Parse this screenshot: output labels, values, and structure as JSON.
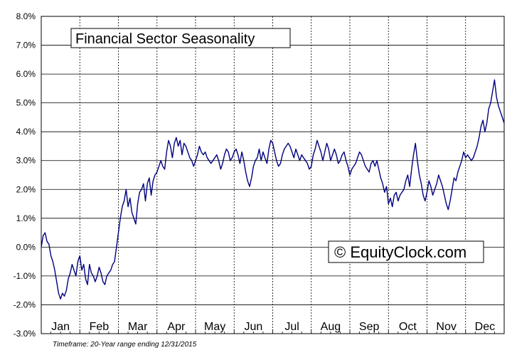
{
  "chart_data": {
    "type": "line",
    "title": "Financial Sector Seasonality",
    "watermark": "© EquityClock.com",
    "footnote": "Timeframe: 20-Year range ending 12/31/2015",
    "y_unit": "%",
    "ylim": [
      -3.0,
      8.0
    ],
    "y_ticks": [
      "8.0%",
      "7.0%",
      "6.0%",
      "5.0%",
      "4.0%",
      "3.0%",
      "2.0%",
      "1.0%",
      "0.0%",
      "-1.0%",
      "-2.0%",
      "-3.0%"
    ],
    "y_tick_values": [
      8,
      7,
      6,
      5,
      4,
      3,
      2,
      1,
      0,
      -1,
      -2,
      -3
    ],
    "months": [
      "Jan",
      "Feb",
      "Mar",
      "Apr",
      "May",
      "Jun",
      "Jul",
      "Aug",
      "Sep",
      "Oct",
      "Nov",
      "Dec"
    ],
    "grid": true,
    "line_color": "#000080",
    "series": [
      {
        "x": [
          0,
          0.05,
          0.1,
          0.15,
          0.2,
          0.25,
          0.3,
          0.35,
          0.4,
          0.45,
          0.5,
          0.55,
          0.6,
          0.65,
          0.7,
          0.75,
          0.8,
          0.85,
          0.9,
          0.95,
          1.0,
          1.05,
          1.1,
          1.15,
          1.2,
          1.25,
          1.3,
          1.35,
          1.4,
          1.45,
          1.5,
          1.55,
          1.6,
          1.65,
          1.7,
          1.75,
          1.8,
          1.85,
          1.9,
          1.95,
          2.0,
          2.05,
          2.1,
          2.15,
          2.2,
          2.25,
          2.3,
          2.35,
          2.4,
          2.45,
          2.5,
          2.55,
          2.6,
          2.65,
          2.7,
          2.75,
          2.8,
          2.85,
          2.9,
          2.95,
          3.0,
          3.05,
          3.1,
          3.15,
          3.2,
          3.25,
          3.3,
          3.35,
          3.4,
          3.45,
          3.5,
          3.55,
          3.6,
          3.65,
          3.7,
          3.75,
          3.8,
          3.85,
          3.9,
          3.95,
          4.0,
          4.05,
          4.1,
          4.15,
          4.2,
          4.25,
          4.3,
          4.35,
          4.4,
          4.45,
          4.5,
          4.55,
          4.6,
          4.65,
          4.7,
          4.75,
          4.8,
          4.85,
          4.9,
          4.95,
          5.0,
          5.05,
          5.1,
          5.15,
          5.2,
          5.25,
          5.3,
          5.35,
          5.4,
          5.45,
          5.5,
          5.55,
          5.6,
          5.65,
          5.7,
          5.75,
          5.8,
          5.85,
          5.9,
          5.95,
          6.0,
          6.05,
          6.1,
          6.15,
          6.2,
          6.25,
          6.3,
          6.35,
          6.4,
          6.45,
          6.5,
          6.55,
          6.6,
          6.65,
          6.7,
          6.75,
          6.8,
          6.85,
          6.9,
          6.95,
          7.0,
          7.05,
          7.1,
          7.15,
          7.2,
          7.25,
          7.3,
          7.35,
          7.4,
          7.45,
          7.5,
          7.55,
          7.6,
          7.65,
          7.7,
          7.75,
          7.8,
          7.85,
          7.9,
          7.95,
          8.0,
          8.05,
          8.1,
          8.15,
          8.2,
          8.25,
          8.3,
          8.35,
          8.4,
          8.45,
          8.5,
          8.55,
          8.6,
          8.65,
          8.7,
          8.75,
          8.8,
          8.85,
          8.9,
          8.95,
          9.0,
          9.05,
          9.1,
          9.15,
          9.2,
          9.25,
          9.3,
          9.35,
          9.4,
          9.45,
          9.5,
          9.55,
          9.6,
          9.65,
          9.7,
          9.75,
          9.8,
          9.85,
          9.9,
          9.95,
          10.0,
          10.05,
          10.1,
          10.15,
          10.2,
          10.25,
          10.3,
          10.35,
          10.4,
          10.45,
          10.5,
          10.55,
          10.6,
          10.65,
          10.7,
          10.75,
          10.8,
          10.85,
          10.9,
          10.95,
          11.0,
          11.05,
          11.1,
          11.15,
          11.2,
          11.25,
          11.3,
          11.35,
          11.4,
          11.45,
          11.5,
          11.55,
          11.6,
          11.65,
          11.7,
          11.75,
          11.8,
          11.85,
          11.9,
          11.95,
          12.0
        ],
        "y": [
          0.0,
          0.4,
          0.5,
          0.2,
          0.1,
          -0.3,
          -0.5,
          -0.8,
          -1.2,
          -1.6,
          -1.8,
          -1.6,
          -1.7,
          -1.5,
          -1.1,
          -0.9,
          -0.6,
          -0.8,
          -1.0,
          -0.5,
          -0.3,
          -0.8,
          -0.6,
          -1.1,
          -1.3,
          -0.6,
          -0.9,
          -1.0,
          -1.2,
          -1.0,
          -0.7,
          -0.9,
          -1.2,
          -1.3,
          -1.0,
          -0.9,
          -0.8,
          -0.6,
          -0.5,
          0.0,
          0.5,
          1.0,
          1.4,
          1.6,
          2.0,
          1.4,
          1.7,
          1.2,
          1.0,
          0.8,
          1.5,
          1.9,
          2.0,
          2.2,
          1.6,
          2.2,
          2.4,
          1.8,
          2.3,
          2.5,
          2.6,
          2.8,
          3.0,
          2.8,
          2.7,
          3.3,
          3.7,
          3.5,
          3.1,
          3.6,
          3.8,
          3.5,
          3.7,
          3.2,
          3.6,
          3.5,
          3.3,
          3.1,
          3.0,
          2.8,
          3.0,
          3.2,
          3.5,
          3.3,
          3.2,
          3.3,
          3.1,
          3.0,
          2.9,
          3.0,
          3.1,
          3.2,
          3.0,
          2.7,
          2.9,
          3.2,
          3.4,
          3.3,
          3.0,
          3.1,
          3.3,
          3.4,
          3.2,
          2.9,
          3.3,
          3.0,
          2.6,
          2.3,
          2.1,
          2.4,
          2.8,
          3.0,
          3.1,
          3.4,
          3.0,
          3.3,
          3.1,
          2.9,
          3.4,
          3.7,
          3.6,
          3.3,
          3.0,
          2.8,
          2.9,
          3.2,
          3.4,
          3.5,
          3.6,
          3.5,
          3.3,
          3.1,
          3.4,
          3.2,
          3.0,
          3.2,
          3.1,
          3.0,
          2.9,
          2.7,
          2.8,
          3.2,
          3.4,
          3.7,
          3.5,
          3.3,
          3.0,
          3.3,
          3.6,
          3.4,
          3.0,
          3.2,
          3.4,
          3.2,
          2.9,
          3.0,
          3.2,
          3.3,
          3.0,
          2.8,
          2.5,
          2.7,
          2.8,
          2.9,
          3.1,
          3.3,
          3.2,
          3.0,
          2.8,
          2.7,
          2.6,
          2.9,
          3.0,
          2.8,
          3.0,
          2.7,
          2.4,
          2.2,
          1.9,
          2.1,
          1.5,
          1.7,
          1.4,
          1.8,
          1.9,
          1.6,
          1.8,
          1.9,
          2.0,
          2.3,
          2.5,
          2.1,
          2.7,
          3.2,
          3.6,
          3.0,
          2.5,
          2.2,
          1.8,
          1.6,
          1.9,
          2.3,
          2.1,
          1.8,
          2.0,
          2.2,
          2.5,
          2.3,
          2.1,
          1.8,
          1.5,
          1.3,
          1.6,
          2.0,
          2.4,
          2.3,
          2.6,
          2.8,
          3.0,
          3.3,
          3.1,
          3.2,
          3.1,
          3.0,
          3.1,
          3.3,
          3.5,
          3.8,
          4.2,
          4.4,
          4.0,
          4.3,
          4.8,
          5.0,
          5.4,
          5.8,
          5.2,
          4.9,
          4.7,
          4.5,
          4.3
        ]
      }
    ]
  }
}
